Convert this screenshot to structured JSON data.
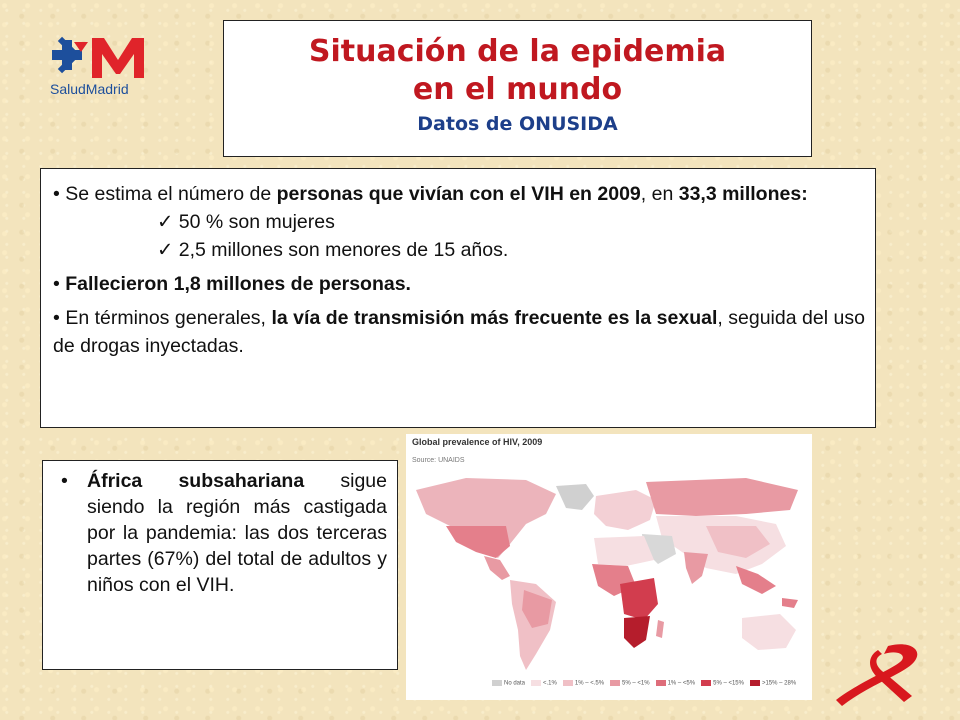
{
  "header": {
    "logo_text": "SaludMadrid",
    "title_line1": "Situación de la epidemia",
    "title_line2": "en el mundo",
    "subtitle": "Datos de ONUSIDA"
  },
  "info": {
    "b1_pre": "Se estima el número de ",
    "b1_bold": "personas que vivían con el VIH en 2009",
    "b1_mid": ", en ",
    "b1_bold2": "33,3 millones:",
    "check1": "50 % son mujeres",
    "check2": "2,5 millones son menores de 15 años.",
    "b2_bold": "Fallecieron 1,8 millones de personas.",
    "b3_pre": "En términos generales, ",
    "b3_bold": "la vía de transmisión más frecuente es la sexual",
    "b3_post": ", seguida del uso de drogas inyectadas."
  },
  "africa": {
    "bold": "África subsahariana",
    "text": " sigue siendo la región más castigada por la pandemia: las dos terceras partes (67%) del total de adultos y niños con el VIH."
  },
  "map": {
    "title": "Global prevalence of HIV, 2009",
    "source": "Source: UNAIDS",
    "legend": [
      {
        "label": "No data",
        "color": "#d0d0d0"
      },
      {
        "label": "<.1%",
        "color": "#f6dfe2"
      },
      {
        "label": "1% – <.5%",
        "color": "#f0c0c6"
      },
      {
        "label": "5% – <1%",
        "color": "#e89aa3"
      },
      {
        "label": "1% – <5%",
        "color": "#de6d7a"
      },
      {
        "label": "5% – <15%",
        "color": "#d23d4e"
      },
      {
        "label": ">15% – 28%",
        "color": "#b51d2c"
      }
    ]
  },
  "colors": {
    "title_red": "#c01820",
    "subtitle_blue": "#1d3f8a",
    "logo_blue": "#1d4f9c",
    "logo_red": "#e0242a",
    "ribbon_red": "#d8181e"
  }
}
